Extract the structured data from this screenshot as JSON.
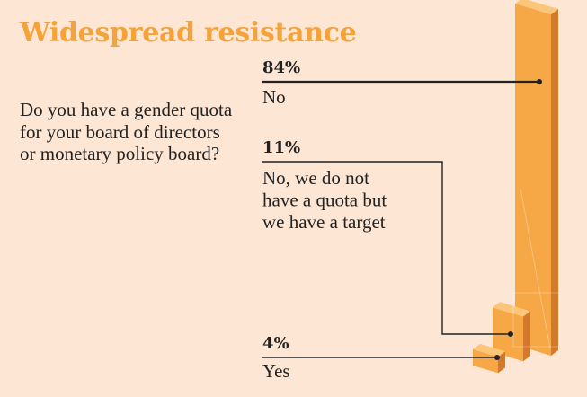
{
  "title": "Widespread resistance",
  "question": "Do you have a gender quota for your board of directors or monetary policy board?",
  "colors": {
    "background": "#fde6d4",
    "title": "#f3a33a",
    "bar_front": "#f6a847",
    "bar_side": "#d4782a",
    "bar_top": "#fbc67a",
    "line": "#222222"
  },
  "chart_data": {
    "type": "bar",
    "style": "3d-isometric",
    "categories": [
      "No",
      "No, we do not have a quota but we have a target",
      "Yes"
    ],
    "values": [
      84,
      11,
      4
    ],
    "value_labels": [
      "84%",
      "11%",
      "4%"
    ],
    "label_lines": [
      [
        "No"
      ],
      [
        "No, we do not",
        "have a quota but",
        "we have a target"
      ],
      [
        "Yes"
      ]
    ],
    "unit": "%"
  }
}
